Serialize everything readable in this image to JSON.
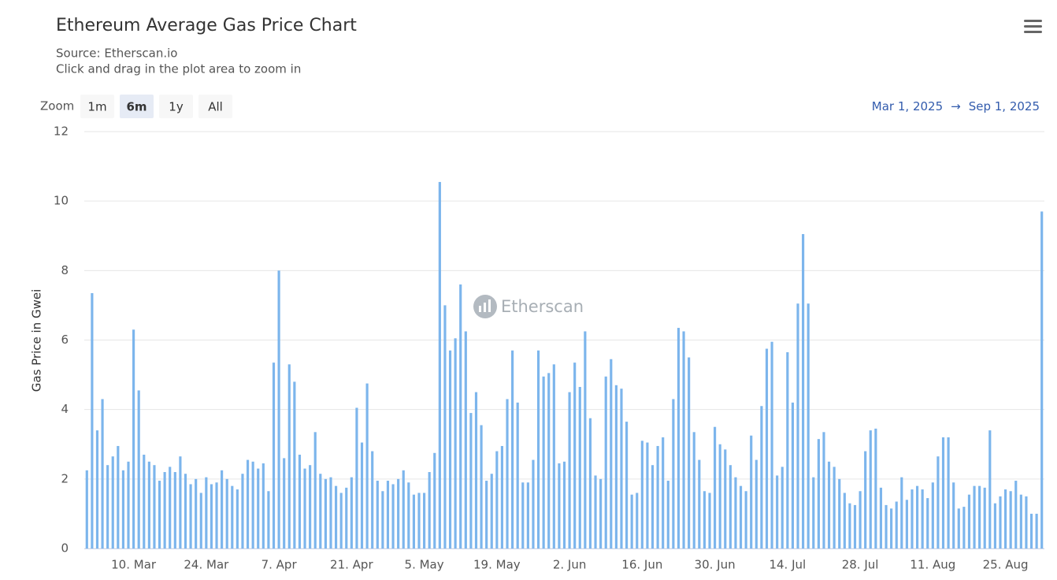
{
  "chart_data": {
    "type": "bar",
    "title": "Ethereum Average Gas Price Chart",
    "subtitle": [
      "Source: Etherscan.io",
      "Click and drag in the plot area to zoom in"
    ],
    "y_label": "Gas Price in Gwei",
    "watermark": "Etherscan",
    "zoom": {
      "label": "Zoom",
      "buttons": [
        "1m",
        "6m",
        "1y",
        "All"
      ],
      "selected": "6m"
    },
    "range": {
      "from": "Mar 1, 2025",
      "arrow": "→",
      "to": "Sep 1, 2025"
    },
    "color": "#7cb5ec",
    "grid": true,
    "ylim": [
      0,
      12
    ],
    "yticks": [
      0,
      2,
      4,
      6,
      8,
      10,
      12
    ],
    "categories": [
      null,
      null,
      null,
      null,
      null,
      null,
      null,
      null,
      null,
      "10. Mar",
      null,
      null,
      null,
      null,
      null,
      null,
      null,
      null,
      null,
      null,
      null,
      null,
      null,
      "24. Mar",
      null,
      null,
      null,
      null,
      null,
      null,
      null,
      null,
      null,
      null,
      null,
      null,
      null,
      "7. Apr",
      null,
      null,
      null,
      null,
      null,
      null,
      null,
      null,
      null,
      null,
      null,
      null,
      null,
      "21. Apr",
      null,
      null,
      null,
      null,
      null,
      null,
      null,
      null,
      null,
      null,
      null,
      null,
      null,
      "5. May",
      null,
      null,
      null,
      null,
      null,
      null,
      null,
      null,
      null,
      null,
      null,
      null,
      null,
      "19. May",
      null,
      null,
      null,
      null,
      null,
      null,
      null,
      null,
      null,
      null,
      null,
      null,
      null,
      "2. Jun",
      null,
      null,
      null,
      null,
      null,
      null,
      null,
      null,
      null,
      null,
      null,
      null,
      null,
      "16. Jun",
      null,
      null,
      null,
      null,
      null,
      null,
      null,
      null,
      null,
      null,
      null,
      null,
      null,
      "30. Jun",
      null,
      null,
      null,
      null,
      null,
      null,
      null,
      null,
      null,
      null,
      null,
      null,
      null,
      "14. Jul",
      null,
      null,
      null,
      null,
      null,
      null,
      null,
      null,
      null,
      null,
      null,
      null,
      null,
      "28. Jul",
      null,
      null,
      null,
      null,
      null,
      null,
      null,
      null,
      null,
      null,
      null,
      null,
      null,
      "11. Aug",
      null,
      null,
      null,
      null,
      null,
      null,
      null,
      null,
      null,
      null,
      null,
      null,
      null,
      "25. Aug",
      null,
      null,
      null,
      null,
      null,
      null,
      null
    ],
    "values": [
      2.25,
      7.35,
      3.4,
      4.3,
      2.4,
      2.65,
      2.95,
      2.25,
      2.5,
      6.3,
      4.55,
      2.7,
      2.5,
      2.4,
      1.95,
      2.2,
      2.35,
      2.2,
      2.65,
      2.15,
      1.85,
      2.0,
      1.6,
      2.05,
      1.85,
      1.9,
      2.25,
      2.0,
      1.8,
      1.7,
      2.15,
      2.55,
      2.5,
      2.3,
      2.45,
      1.65,
      5.35,
      8.0,
      2.6,
      5.3,
      4.8,
      2.7,
      2.3,
      2.4,
      3.35,
      2.15,
      2.0,
      2.05,
      1.8,
      1.6,
      1.75,
      2.05,
      4.05,
      3.05,
      4.75,
      2.8,
      1.95,
      1.65,
      1.95,
      1.85,
      2.0,
      2.25,
      1.9,
      1.55,
      1.6,
      1.6,
      2.2,
      2.75,
      10.55,
      7.0,
      5.7,
      6.05,
      7.6,
      6.25,
      3.9,
      4.5,
      3.55,
      1.95,
      2.15,
      2.8,
      2.95,
      4.3,
      5.7,
      4.2,
      1.9,
      1.9,
      2.55,
      5.7,
      4.95,
      5.05,
      5.3,
      2.45,
      2.5,
      4.5,
      5.35,
      4.65,
      6.25,
      3.75,
      2.1,
      2.0,
      4.95,
      5.45,
      4.7,
      4.6,
      3.65,
      1.55,
      1.6,
      3.1,
      3.05,
      2.4,
      2.95,
      3.2,
      1.95,
      4.3,
      6.35,
      6.25,
      5.5,
      3.35,
      2.55,
      1.65,
      1.6,
      3.5,
      3.0,
      2.85,
      2.4,
      2.05,
      1.8,
      1.65,
      3.25,
      2.55,
      4.1,
      5.75,
      5.95,
      2.1,
      2.35,
      5.65,
      4.2,
      7.05,
      9.05,
      7.05,
      2.05,
      3.15,
      3.35,
      2.5,
      2.35,
      2.0,
      1.6,
      1.3,
      1.25,
      1.65,
      2.8,
      3.4,
      3.45,
      1.75,
      1.25,
      1.15,
      1.35,
      2.05,
      1.4,
      1.7,
      1.8,
      1.7,
      1.45,
      1.9,
      2.65,
      3.2,
      3.2,
      1.9,
      1.15,
      1.2,
      1.55,
      1.8,
      1.8,
      1.75,
      3.4,
      1.3,
      1.5,
      1.7,
      1.65,
      1.95,
      1.55,
      1.5,
      1.0,
      1.0,
      9.7
    ]
  }
}
